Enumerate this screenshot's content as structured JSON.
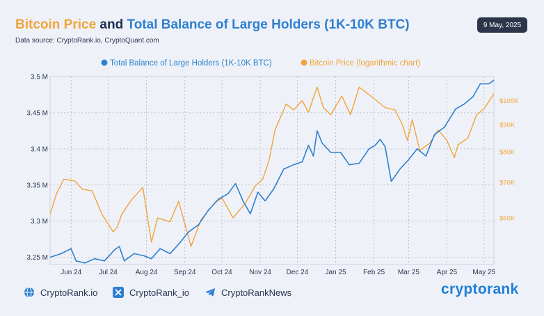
{
  "header": {
    "title_part1": "Bitcoin Price",
    "title_part2": " and ",
    "title_part3": "Total Balance of Large Holders (1K-10K BTC)",
    "subtitle": "Data source: CryptoRank.io, CryptoQuant.com",
    "date": "9 May, 2025"
  },
  "footer": {
    "link1": "CryptoRank.io",
    "link2": "CryptoRank_io",
    "link3": "CryptoRankNews",
    "brand": "cryptorank"
  },
  "colors": {
    "balance": "#2f7fd0",
    "price": "#f2a33a",
    "grid": "#aab2c2",
    "text": "#2b3550"
  },
  "icons": [
    "globe-icon",
    "x-logo-icon",
    "telegram-icon"
  ],
  "chart_data": {
    "type": "line",
    "legend_position": "top",
    "grid": true,
    "x_ticks": [
      "Jun 24",
      "Jul 24",
      "Aug 24",
      "Sep 24",
      "Oct 24",
      "Nov 24",
      "Dec 24",
      "Jan 25",
      "Feb 25",
      "Mar 25",
      "Apr 25",
      "May 25"
    ],
    "y_left": {
      "ticks": [
        "3.25 M",
        "3.3 M",
        "3.35 M",
        "3.4 M",
        "3.45 M",
        "3.5 M"
      ],
      "lim": [
        3.24,
        3.5
      ],
      "scale": "linear"
    },
    "y_right": {
      "ticks": [
        "$60K",
        "$70K",
        "$80K",
        "$90K",
        "$100K"
      ],
      "lim": [
        49000,
        111000
      ],
      "scale": "log"
    },
    "series": [
      {
        "name": "Total Balance of Large Holders (1K-10K BTC)",
        "axis": "left",
        "x": [
          "2024-05-15",
          "2024-05-24",
          "2024-06-01",
          "2024-06-05",
          "2024-06-12",
          "2024-06-20",
          "2024-06-28",
          "2024-07-06",
          "2024-07-10",
          "2024-07-14",
          "2024-07-22",
          "2024-07-30",
          "2024-08-05",
          "2024-08-12",
          "2024-08-20",
          "2024-08-28",
          "2024-09-04",
          "2024-09-12",
          "2024-09-20",
          "2024-09-28",
          "2024-10-06",
          "2024-10-12",
          "2024-10-18",
          "2024-10-24",
          "2024-10-30",
          "2024-11-05",
          "2024-11-12",
          "2024-11-20",
          "2024-11-28",
          "2024-12-05",
          "2024-12-10",
          "2024-12-14",
          "2024-12-17",
          "2024-12-21",
          "2024-12-28",
          "2025-01-05",
          "2025-01-12",
          "2025-01-20",
          "2025-01-28",
          "2025-02-02",
          "2025-02-06",
          "2025-02-10",
          "2025-02-15",
          "2025-02-22",
          "2025-03-01",
          "2025-03-08",
          "2025-03-15",
          "2025-03-22",
          "2025-03-30",
          "2025-04-08",
          "2025-04-15",
          "2025-04-22",
          "2025-04-28",
          "2025-05-05",
          "2025-05-09"
        ],
        "y": [
          3.25,
          3.255,
          3.262,
          3.245,
          3.242,
          3.248,
          3.245,
          3.26,
          3.265,
          3.245,
          3.255,
          3.252,
          3.248,
          3.262,
          3.255,
          3.27,
          3.285,
          3.295,
          3.315,
          3.33,
          3.338,
          3.352,
          3.328,
          3.31,
          3.34,
          3.328,
          3.345,
          3.372,
          3.378,
          3.382,
          3.405,
          3.39,
          3.425,
          3.408,
          3.395,
          3.395,
          3.378,
          3.38,
          3.4,
          3.405,
          3.413,
          3.403,
          3.355,
          3.372,
          3.385,
          3.4,
          3.39,
          3.42,
          3.43,
          3.455,
          3.462,
          3.472,
          3.49,
          3.49,
          3.495
        ]
      },
      {
        "name": "Bitcoin Price (logarithmic chart)",
        "axis": "right",
        "x": [
          "2024-05-15",
          "2024-05-20",
          "2024-05-26",
          "2024-06-04",
          "2024-06-10",
          "2024-06-18",
          "2024-06-26",
          "2024-07-05",
          "2024-07-08",
          "2024-07-12",
          "2024-07-20",
          "2024-07-29",
          "2024-08-05",
          "2024-08-10",
          "2024-08-20",
          "2024-08-27",
          "2024-09-06",
          "2024-09-14",
          "2024-09-25",
          "2024-10-01",
          "2024-10-10",
          "2024-10-20",
          "2024-10-28",
          "2024-11-03",
          "2024-11-08",
          "2024-11-13",
          "2024-11-22",
          "2024-11-28",
          "2024-12-05",
          "2024-12-10",
          "2024-12-17",
          "2024-12-22",
          "2024-12-28",
          "2025-01-06",
          "2025-01-13",
          "2025-01-20",
          "2025-01-27",
          "2025-02-03",
          "2025-02-10",
          "2025-02-18",
          "2025-02-24",
          "2025-02-28",
          "2025-03-04",
          "2025-03-10",
          "2025-03-18",
          "2025-03-25",
          "2025-04-01",
          "2025-04-07",
          "2025-04-10",
          "2025-04-18",
          "2025-04-25",
          "2025-05-01",
          "2025-05-09"
        ],
        "y": [
          61000,
          66500,
          71000,
          70500,
          68000,
          67500,
          61000,
          56500,
          57500,
          61000,
          65000,
          68500,
          54000,
          60000,
          59000,
          64500,
          53000,
          59500,
          64000,
          65500,
          60000,
          64000,
          69000,
          71000,
          77000,
          88000,
          98500,
          96000,
          100000,
          95000,
          106000,
          97000,
          94000,
          102000,
          94000,
          106000,
          103000,
          100000,
          97000,
          96000,
          90000,
          84000,
          92000,
          80500,
          83000,
          88000,
          84000,
          78000,
          82500,
          85000,
          94000,
          96500,
          103000
        ]
      }
    ]
  }
}
